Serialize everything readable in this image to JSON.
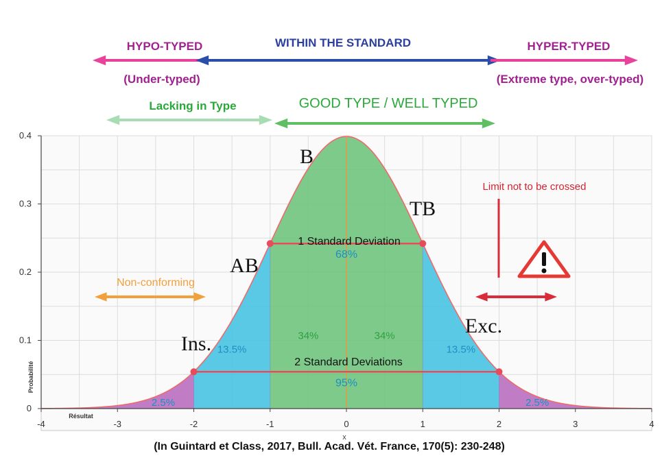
{
  "colors": {
    "hypo": "#e8429a",
    "hypo_text": "#a0218f",
    "standard": "#2b4ea8",
    "lacking": "#a8dcb2",
    "good": "#5fbf62",
    "good_text": "#2aa83a",
    "nonconforming": "#f2a03c",
    "limit": "#d92b3a",
    "warning": "#e53935",
    "green_fill": "#6fc47e",
    "blue_fill": "#47c3e3",
    "purple_fill": "#b96fc0",
    "percent_text": "#1e8fc0",
    "green_percent_text": "#2fa040",
    "curve": "#ee6a6a",
    "mean_line": "#e79a47",
    "point": "#e84c5a"
  },
  "header": {
    "hypo_label": "HYPO-TYPED",
    "hypo_sub": "(Under-typed)",
    "standard_label": "WITHIN THE STANDARD",
    "hyper_label": "HYPER-TYPED",
    "hyper_sub": "(Extreme type, over-typed)",
    "lacking_label": "Lacking in Type",
    "good_label": "GOOD TYPE / WELL TYPED"
  },
  "annotations": {
    "non_conforming": "Non-conforming",
    "limit": "Limit not to be crossed",
    "warning_icon": "warning-triangle-icon",
    "one_sd": "1 Standard Deviation",
    "two_sd": "2 Standard Deviations",
    "grades": {
      "ins": "Ins.",
      "ab": "AB",
      "b": "B",
      "tb": "TB",
      "exc": "Exc."
    }
  },
  "footer": {
    "citation": "(In Guintard et Class, 2017, Bull. Acad. Vét. France, 170(5): 230-248)"
  },
  "chart_data": {
    "type": "area",
    "distribution": "standard normal",
    "mean": 0,
    "sd": 1,
    "xlabel": "Résultat",
    "ylabel": "Probabilité",
    "x_axis_symbol": "x",
    "xlim": [
      -4,
      4
    ],
    "ylim": [
      0,
      0.4
    ],
    "x_ticks": [
      -4,
      -3,
      -2,
      -1,
      0,
      1,
      2,
      3,
      4
    ],
    "y_ticks": [
      0,
      0.1,
      0.2,
      0.3,
      0.4
    ],
    "x_tick_labels": [
      "-4",
      "-3",
      "-2",
      "-1",
      "0",
      "1",
      "2",
      "3",
      "4"
    ],
    "y_tick_labels": [
      "0",
      "0.1",
      "0.2",
      "0.3",
      "0.4"
    ],
    "grid": true,
    "regions": [
      {
        "from": -4,
        "to": -2,
        "label": "2.5%",
        "fill": "purple"
      },
      {
        "from": -2,
        "to": -1,
        "label": "13.5%",
        "fill": "blue"
      },
      {
        "from": -1,
        "to": 0,
        "label": "34%",
        "fill": "green"
      },
      {
        "from": 0,
        "to": 1,
        "label": "34%",
        "fill": "green"
      },
      {
        "from": 1,
        "to": 2,
        "label": "13.5%",
        "fill": "blue"
      },
      {
        "from": 2,
        "to": 4,
        "label": "2.5%",
        "fill": "purple"
      }
    ],
    "intervals": [
      {
        "from": -1,
        "to": 1,
        "label": "68%"
      },
      {
        "from": -2,
        "to": 2,
        "label": "95%"
      }
    ]
  }
}
